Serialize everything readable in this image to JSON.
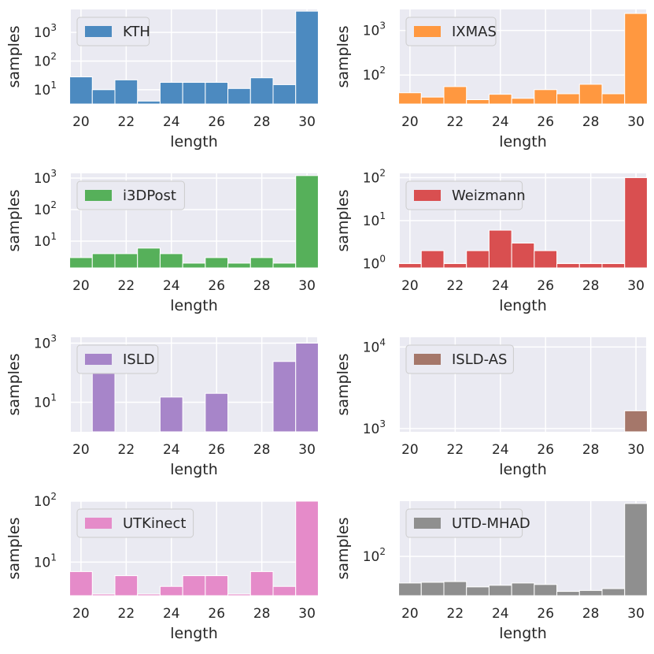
{
  "charts": [
    {
      "type": "bar",
      "scale": "log",
      "legend": "KTH",
      "legend_position": "top-left",
      "color": "#4c8ac0",
      "xlabel": "length",
      "ylabel": "samples",
      "x": [
        20,
        21,
        22,
        23,
        24,
        25,
        26,
        27,
        28,
        29,
        30
      ],
      "values": [
        28,
        10,
        22,
        4,
        18,
        18,
        18,
        11,
        26,
        15,
        5500
      ],
      "ylim_exp": [
        0.5,
        3.8
      ],
      "yticks": [
        1,
        2,
        3
      ],
      "xticks": [
        20,
        22,
        24,
        26,
        28,
        30
      ],
      "grid": true
    },
    {
      "type": "bar",
      "scale": "log",
      "legend": "IXMAS",
      "legend_position": "top-left",
      "color": "#ff9840",
      "xlabel": "length",
      "ylabel": "samples",
      "x": [
        20,
        21,
        22,
        23,
        24,
        25,
        26,
        27,
        28,
        29,
        30
      ],
      "values": [
        40,
        32,
        55,
        28,
        37,
        30,
        47,
        38,
        62,
        38,
        2400
      ],
      "ylim_exp": [
        1.35,
        3.47
      ],
      "yticks": [
        2,
        3
      ],
      "xticks": [
        20,
        22,
        24,
        26,
        28,
        30
      ],
      "grid": true
    },
    {
      "type": "bar",
      "scale": "log",
      "legend": "i3DPost",
      "legend_position": "top-left",
      "color": "#56b05a",
      "xlabel": "length",
      "ylabel": "samples",
      "x": [
        20,
        21,
        22,
        23,
        24,
        25,
        26,
        27,
        28,
        29,
        30
      ],
      "values": [
        3,
        4,
        4,
        6,
        4,
        2,
        3,
        2,
        3,
        2,
        1200
      ],
      "ylim_exp": [
        0.15,
        3.15
      ],
      "yticks": [
        1,
        2,
        3
      ],
      "xticks": [
        20,
        22,
        24,
        26,
        28,
        30
      ],
      "grid": true
    },
    {
      "type": "bar",
      "scale": "log",
      "legend": "Weizmann",
      "legend_position": "top-left",
      "color": "#d94f50",
      "xlabel": "length",
      "ylabel": "samples",
      "x": [
        20,
        21,
        22,
        23,
        24,
        25,
        26,
        27,
        28,
        29,
        30
      ],
      "values": [
        1,
        2,
        1,
        2,
        6,
        3,
        2,
        1,
        1,
        1,
        100
      ],
      "ylim_exp": [
        -0.1,
        2.1
      ],
      "yticks": [
        0,
        1,
        2
      ],
      "xticks": [
        20,
        22,
        24,
        26,
        28,
        30
      ],
      "grid": true
    },
    {
      "type": "bar",
      "scale": "log",
      "legend": "ISLD",
      "legend_position": "top-left",
      "color": "#a785c9",
      "xlabel": "length",
      "ylabel": "samples",
      "x": [
        20,
        21,
        22,
        23,
        24,
        25,
        26,
        27,
        28,
        29,
        30
      ],
      "values": [
        1,
        270,
        1,
        1,
        15,
        null,
        20,
        null,
        null,
        240,
        1000
      ],
      "ylim_exp": [
        0,
        3.2
      ],
      "yticks": [
        1,
        3
      ],
      "xticks": [
        20,
        22,
        24,
        26,
        28,
        30
      ],
      "grid": true
    },
    {
      "type": "bar",
      "scale": "log",
      "legend": "ISLD-AS",
      "legend_position": "top-left",
      "color": "#a5776a",
      "xlabel": "length",
      "ylabel": "samples",
      "x": [
        20,
        21,
        22,
        23,
        24,
        25,
        26,
        27,
        28,
        29,
        30
      ],
      "values": [
        null,
        null,
        null,
        null,
        null,
        null,
        null,
        null,
        null,
        null,
        1650
      ],
      "ylim_exp": [
        2.96,
        4.12
      ],
      "yticks": [
        3,
        4
      ],
      "xticks": [
        20,
        22,
        24,
        26,
        28,
        30
      ],
      "grid": true
    },
    {
      "type": "bar",
      "scale": "log",
      "legend": "UTKinect",
      "legend_position": "top-left",
      "color": "#e58bc9",
      "xlabel": "length",
      "ylabel": "samples",
      "x": [
        20,
        21,
        22,
        23,
        24,
        25,
        26,
        27,
        28,
        29,
        30
      ],
      "values": [
        7,
        3,
        6,
        3,
        4,
        6,
        6,
        3,
        7,
        4,
        100
      ],
      "ylim_exp": [
        0.45,
        2.0
      ],
      "yticks": [
        1,
        2
      ],
      "xticks": [
        20,
        22,
        24,
        26,
        28,
        30
      ],
      "grid": true
    },
    {
      "type": "bar",
      "scale": "log",
      "legend": "UTD-MHAD",
      "legend_position": "top-left",
      "color": "#8f8f8f",
      "xlabel": "length",
      "ylabel": "samples",
      "x": [
        20,
        21,
        22,
        23,
        24,
        25,
        26,
        27,
        28,
        29,
        30
      ],
      "values": [
        38,
        39,
        40,
        33,
        35,
        38,
        36,
        28,
        29,
        31,
        680
      ],
      "ylim_exp": [
        1.38,
        2.87
      ],
      "yticks": [
        2
      ],
      "xticks": [
        20,
        22,
        24,
        26,
        28,
        30
      ],
      "grid": true
    }
  ]
}
